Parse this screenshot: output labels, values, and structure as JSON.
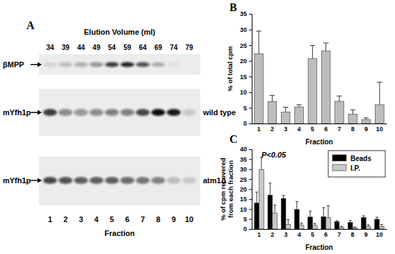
{
  "chart_data": [
    {
      "type": "blot",
      "panel": "A",
      "title": "Elution Volume (ml)",
      "elution_volumes": [
        34,
        39,
        44,
        49,
        54,
        59,
        64,
        69,
        74,
        79
      ],
      "categories": [
        "1",
        "2",
        "3",
        "4",
        "5",
        "6",
        "7",
        "8",
        "9",
        "10"
      ],
      "x_label": "Fraction",
      "rows": [
        {
          "label": "βMPP",
          "intensities": [
            0.1,
            0.2,
            0.25,
            0.4,
            0.8,
            0.9,
            0.7,
            0.25,
            0.05,
            0
          ]
        },
        {
          "label": "mYfh1p",
          "sublabel": "wild type",
          "intensities": [
            0.8,
            0.45,
            0.4,
            0.45,
            0.5,
            0.5,
            0.75,
            1,
            0.95,
            0.15
          ]
        },
        {
          "label": "mYfh1p",
          "sublabel": "atm1Δ",
          "intensities": [
            0.75,
            0.7,
            0.65,
            0.65,
            0.65,
            0.6,
            0.55,
            0.5,
            0.2,
            0.15
          ]
        }
      ]
    },
    {
      "type": "bar",
      "panel": "B",
      "y_label": "% of total cpm",
      "x_label": "Fraction",
      "categories": [
        "1",
        "2",
        "3",
        "4",
        "5",
        "6",
        "7",
        "8",
        "9",
        "10"
      ],
      "values": [
        22.3,
        7,
        3.7,
        5.3,
        20.7,
        23.2,
        7.1,
        3,
        1.3,
        6
      ],
      "errors": [
        7.2,
        2,
        1.5,
        0.7,
        4.2,
        2.5,
        1.7,
        1.4,
        0.5,
        7.2
      ],
      "color": "#bdbdbd",
      "ylim": [
        0,
        35
      ],
      "yticks": [
        0,
        5,
        10,
        15,
        20,
        25,
        30,
        35
      ]
    },
    {
      "type": "bar",
      "panel": "C",
      "y_label": "% of cpm recovered from each fraction",
      "x_label": "Fraction",
      "annotation": "P<0.05",
      "categories": [
        "1",
        "2",
        "3",
        "4",
        "5",
        "6",
        "7",
        "8",
        "9",
        "10"
      ],
      "series": [
        {
          "name": "Beads",
          "color": "#000000",
          "values": [
            13,
            17,
            15.3,
            9.8,
            6,
            6.2,
            3.7,
            3.3,
            5.8,
            4.9
          ],
          "errors": [
            5.5,
            6,
            1.5,
            4,
            3,
            4.5,
            0.5,
            1,
            0.8,
            1
          ]
        },
        {
          "name": "I.P.",
          "color": "#c8c8c8",
          "values": [
            29.8,
            8,
            2.2,
            2,
            1.8,
            5.7,
            0.8,
            0.5,
            1.3,
            1.3
          ],
          "errors": [
            6,
            4,
            2.5,
            1,
            1,
            6,
            0.5,
            0.5,
            0.8,
            1
          ]
        }
      ],
      "ylim": [
        0,
        40
      ],
      "yticks": [
        0,
        5,
        10,
        15,
        20,
        25,
        30,
        35,
        40
      ],
      "legend": "top-right"
    }
  ]
}
